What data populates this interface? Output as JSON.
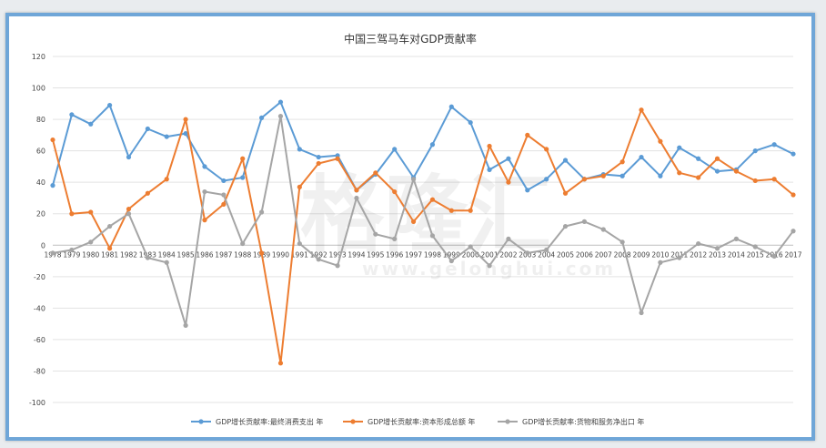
{
  "chart_data": {
    "type": "line",
    "title": "中国三驾马车对GDP贡献率",
    "xlabel": "",
    "ylabel": "",
    "ylim": [
      -100,
      120
    ],
    "yticks": [
      -100,
      -80,
      -60,
      -40,
      -20,
      0,
      20,
      40,
      60,
      80,
      100,
      120
    ],
    "grid": true,
    "legend_position": "bottom",
    "categories": [
      "1978",
      "1979",
      "1980",
      "1981",
      "1982",
      "1983",
      "1984",
      "1985",
      "1986",
      "1987",
      "1988",
      "1989",
      "1990",
      "1991",
      "1992",
      "1993",
      "1994",
      "1995",
      "1996",
      "1997",
      "1998",
      "1999",
      "2000",
      "2001",
      "2002",
      "2003",
      "2004",
      "2005",
      "2006",
      "2007",
      "2008",
      "2009",
      "2010",
      "2011",
      "2012",
      "2013",
      "2014",
      "2015",
      "2016",
      "2017"
    ],
    "series": [
      {
        "name": "GDP增长贡献率:最终消费支出 年",
        "color": "#5b9bd5",
        "values": [
          38,
          83,
          77,
          89,
          56,
          74,
          69,
          71,
          50,
          41,
          43,
          81,
          91,
          61,
          56,
          57,
          35,
          45,
          61,
          43,
          64,
          88,
          78,
          48,
          55,
          35,
          42,
          54,
          42,
          45,
          44,
          56,
          44,
          62,
          55,
          47,
          48,
          60,
          64,
          58
        ]
      },
      {
        "name": "GDP增长贡献率:资本形成总额 年",
        "color": "#ed7d31",
        "values": [
          67,
          20,
          21,
          -2,
          23,
          33,
          42,
          80,
          16,
          26,
          55,
          -5,
          -75,
          37,
          52,
          55,
          35,
          46,
          34,
          15,
          29,
          22,
          22,
          63,
          40,
          70,
          61,
          33,
          42,
          44,
          53,
          86,
          66,
          46,
          43,
          55,
          47,
          41,
          42,
          32
        ]
      },
      {
        "name": "GDP增长贡献率:货物和服务净出口 年",
        "color": "#a5a5a5",
        "values": [
          -5,
          -3,
          2,
          12,
          20,
          -8,
          -11,
          -51,
          34,
          32,
          1,
          21,
          82,
          1,
          -9,
          -13,
          30,
          7,
          4,
          42,
          6,
          -10,
          -1,
          -13,
          4,
          -5,
          -3,
          12,
          15,
          10,
          2,
          -43,
          -11,
          -8,
          1,
          -2,
          4,
          -1,
          -7,
          9
        ]
      }
    ]
  },
  "watermark": {
    "logo_text": "格隆汇",
    "url_text": "www.gelonghui.com"
  }
}
